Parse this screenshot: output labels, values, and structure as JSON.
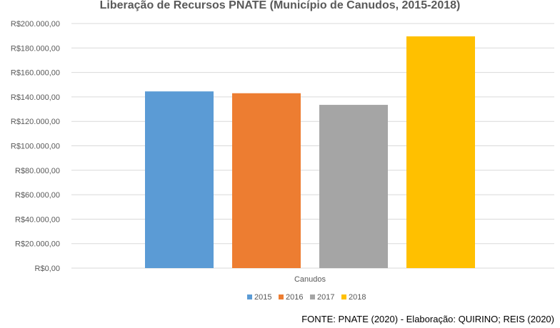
{
  "chart_data": {
    "type": "bar",
    "title": "Liberação de Recursos PNATE (Município de Canudos, 2015-2018)",
    "categories": [
      "Canudos"
    ],
    "series": [
      {
        "name": "2015",
        "values": [
          144500
        ],
        "color": "#5B9BD5"
      },
      {
        "name": "2016",
        "values": [
          143000
        ],
        "color": "#ED7D31"
      },
      {
        "name": "2017",
        "values": [
          133500
        ],
        "color": "#A5A5A5"
      },
      {
        "name": "2018",
        "values": [
          189500
        ],
        "color": "#FFC000"
      }
    ],
    "y_ticks": [
      "R$0,00",
      "R$20.000,00",
      "R$40.000,00",
      "R$60.000,00",
      "R$80.000,00",
      "R$100.000,00",
      "R$120.000,00",
      "R$140.000,00",
      "R$160.000,00",
      "R$180.000,00",
      "R$200.000,00"
    ],
    "ylim": [
      0,
      200000
    ],
    "y_step": 20000,
    "grid": true,
    "legend_position": "bottom",
    "xlabel": "",
    "ylabel": ""
  },
  "source_note": "FONTE: PNATE (2020) - Elaboração: QUIRINO; REIS (2020)"
}
